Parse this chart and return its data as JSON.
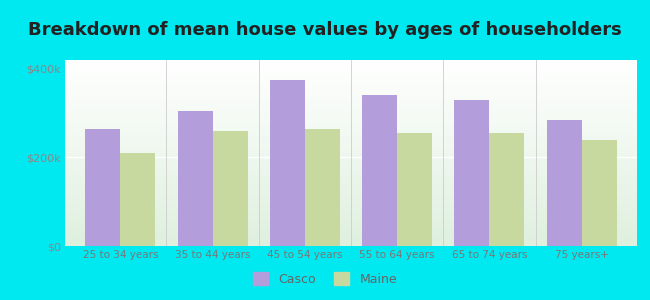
{
  "title": "Breakdown of mean house values by ages of householders",
  "categories": [
    "25 to 34 years",
    "35 to 44 years",
    "45 to 54 years",
    "55 to 64 years",
    "65 to 74 years",
    "75 years+"
  ],
  "casco_values": [
    265000,
    305000,
    375000,
    340000,
    330000,
    285000
  ],
  "maine_values": [
    210000,
    260000,
    265000,
    255000,
    255000,
    240000
  ],
  "casco_color": "#b39ddb",
  "maine_color": "#c8d9a0",
  "background_outer": "#00e8f0",
  "yticks": [
    0,
    200000,
    400000
  ],
  "ytick_labels": [
    "$0",
    "$200k",
    "$400k"
  ],
  "ylim": [
    0,
    420000
  ],
  "title_fontsize": 13,
  "legend_casco": "Casco",
  "legend_maine": "Maine",
  "bar_width": 0.38,
  "figsize": [
    6.5,
    3.0
  ],
  "dpi": 100
}
